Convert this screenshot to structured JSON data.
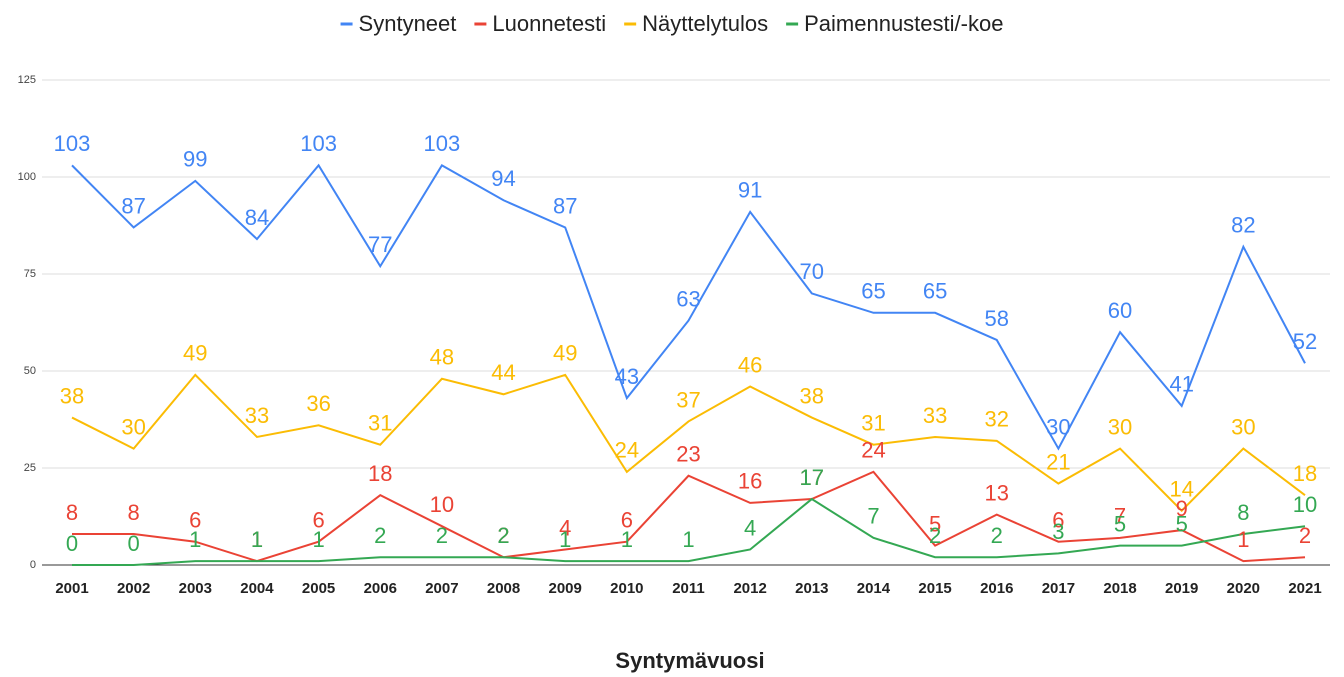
{
  "chart_data": {
    "type": "line",
    "x_label": "Syntymävuosi",
    "categories": [
      "2001",
      "2002",
      "2003",
      "2004",
      "2005",
      "2006",
      "2007",
      "2008",
      "2009",
      "2010",
      "2011",
      "2012",
      "2013",
      "2014",
      "2015",
      "2016",
      "2017",
      "2018",
      "2019",
      "2020",
      "2021"
    ],
    "series": [
      {
        "name": "Syntyneet",
        "color": "#4285f4",
        "values": [
          103,
          87,
          99,
          84,
          103,
          77,
          103,
          94,
          87,
          43,
          63,
          91,
          70,
          65,
          65,
          58,
          30,
          60,
          41,
          82,
          52
        ]
      },
      {
        "name": "Luonnetesti",
        "color": "#ea4335",
        "values": [
          8,
          8,
          6,
          1,
          6,
          18,
          10,
          2,
          4,
          6,
          23,
          16,
          17,
          24,
          5,
          13,
          6,
          7,
          9,
          1,
          2
        ]
      },
      {
        "name": "Näyttelytulos",
        "color": "#fbbc04",
        "values": [
          38,
          30,
          49,
          33,
          36,
          31,
          48,
          44,
          49,
          24,
          37,
          46,
          38,
          31,
          33,
          32,
          21,
          30,
          14,
          30,
          18
        ]
      },
      {
        "name": "Paimennustesti/-koe",
        "color": "#34a853",
        "values": [
          0,
          0,
          1,
          1,
          1,
          2,
          2,
          2,
          1,
          1,
          1,
          4,
          17,
          7,
          2,
          2,
          3,
          5,
          5,
          8,
          10
        ]
      }
    ],
    "ylim": [
      0,
      125
    ],
    "yticks": [
      0,
      25,
      50,
      75,
      100,
      125
    ],
    "grid": true,
    "legend": "top"
  }
}
